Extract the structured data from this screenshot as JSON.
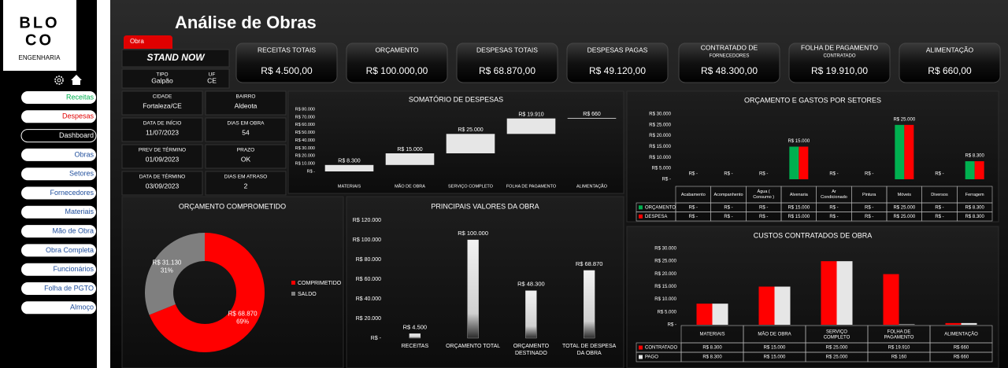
{
  "sidebar": {
    "logo_lines": [
      "BLO",
      "CO"
    ],
    "logo_subtitle": "ENGENHARIA",
    "nav": [
      "Receitas",
      "Despesas",
      "Dashboard",
      "Obras",
      "Setores",
      "Fornecedores",
      "Materiais",
      "Mão de Obra",
      "Obra Completa",
      "Funcionários",
      "Folha de PGTO",
      "Almoço"
    ]
  },
  "header": {
    "title": "Análise de Obras"
  },
  "project": {
    "tag": "Obra",
    "name": "STAND NOW",
    "fields": [
      {
        "label": "TIPO",
        "value": "Galpão"
      },
      {
        "label": "UF",
        "value": "CE"
      },
      {
        "label": "CIDADE",
        "value": "Fortaleza/CE"
      },
      {
        "label": "BAIRRO",
        "value": "Aldeota"
      },
      {
        "label": "DATA DE INÍCIO",
        "value": "11/07/2023"
      },
      {
        "label": "DIAS EM OBRA",
        "value": "54"
      },
      {
        "label": "PREV DE TÉRMINO",
        "value": "01/09/2023"
      },
      {
        "label": "PRAZO",
        "value": "OK"
      },
      {
        "label": "DATA DE TÉRMINO",
        "value": "03/09/2023"
      },
      {
        "label": "DIAS EM ATRASO",
        "value": "2"
      }
    ]
  },
  "kpis": [
    {
      "label": "RECEITAS TOTAIS",
      "value": "R$ 4.500,00"
    },
    {
      "label": "ORÇAMENTO",
      "value": "R$ 100.000,00"
    },
    {
      "label": "DESPESAS TOTAIS",
      "value": "R$ 68.870,00"
    },
    {
      "label": "DESPESAS PAGAS",
      "value": "R$ 49.120,00"
    },
    {
      "label": "CONTRATADO DE",
      "sublabel": "FORNECEDORES",
      "value": "R$ 48.300,00"
    },
    {
      "label": "FOLHA DE PAGAMENTO",
      "sublabel": "CONTRATADO",
      "value": "R$ 19.910,00"
    },
    {
      "label": "ALIMENTAÇÃO",
      "value": "R$ 660,00"
    }
  ],
  "chart_data": [
    {
      "type": "waterfall",
      "title": "SOMATÓRIO DE DESPESAS",
      "categories": [
        "MATERIAIS",
        "MÃO DE OBRA",
        "SERVIÇO COMPLETO",
        "FOLHA DE PAGAMENTO",
        "ALIMENTAÇÃO"
      ],
      "values": [
        8300,
        15000,
        25000,
        19910,
        660
      ],
      "value_labels": [
        "R$ 8.300",
        "R$ 15.000",
        "R$ 25.000",
        "R$ 19.910",
        "R$ 660"
      ],
      "color": "#e6e6e6",
      "grid": false,
      "ylim": [
        0,
        80000
      ],
      "yticks": [
        {
          "value": 0,
          "label": "R$ -"
        },
        {
          "value": 10000,
          "label": "R$ 10.000"
        },
        {
          "value": 20000,
          "label": "R$ 20.000"
        },
        {
          "value": 30000,
          "label": "R$ 30.000"
        },
        {
          "value": 40000,
          "label": "R$ 40.000"
        },
        {
          "value": 50000,
          "label": "R$ 50.000"
        },
        {
          "value": 60000,
          "label": "R$ 60.000"
        },
        {
          "value": 70000,
          "label": "R$ 70.000"
        },
        {
          "value": 80000,
          "label": "R$ 80.000"
        }
      ]
    },
    {
      "type": "donut",
      "title": "ORÇAMENTO COMPROMETIDO",
      "categories": [
        "COMPRIMETIDO",
        "SALDO"
      ],
      "values": [
        68870,
        31130
      ],
      "value_labels": [
        "R$ 68.870",
        "R$ 31.130"
      ],
      "percent_labels": [
        "69%",
        "31%"
      ],
      "colors": [
        "#ff0000",
        "#7f7f7f"
      ],
      "legend": "right"
    },
    {
      "type": "bar",
      "title": "PRINCIPAIS VALORES DA OBRA",
      "categories": [
        "RECEITAS",
        "ORÇAMENTO TOTAL",
        "ORÇAMENTO DESTINADO",
        "TOTAL DE DESPESA DA OBRA"
      ],
      "values": [
        4500,
        100000,
        48300,
        68870
      ],
      "value_labels": [
        "R$ 4.500",
        "R$ 100.000",
        "R$ 48.300",
        "R$ 68.870"
      ],
      "color": "#e6e6e6",
      "grid": false,
      "ylim": [
        0,
        120000
      ],
      "yticks": [
        {
          "value": 0,
          "label": "R$ -"
        },
        {
          "value": 20000,
          "label": "R$ 20.000"
        },
        {
          "value": 40000,
          "label": "R$ 40.000"
        },
        {
          "value": 60000,
          "label": "R$ 60.000"
        },
        {
          "value": 80000,
          "label": "R$ 80.000"
        },
        {
          "value": 100000,
          "label": "R$ 100.000"
        },
        {
          "value": 120000,
          "label": "R$ 120.000"
        }
      ]
    },
    {
      "type": "grouped_bar_table",
      "title": "ORÇAMENTO E GASTOS POR SETORES",
      "categories": [
        "Acabamento",
        "Acompanhento",
        "Água ( Consumo )",
        "Alvenaria",
        "Ar Condicionado",
        "Pintura",
        "Móveis",
        "Diversos",
        "Ferragem"
      ],
      "series": [
        {
          "name": "ORÇAMENTO",
          "color": "#00b050",
          "values": [
            0,
            0,
            0,
            15000,
            0,
            0,
            25000,
            0,
            8300
          ],
          "value_labels": [
            "R$ -",
            "R$ -",
            "R$ -",
            "R$ 15.000",
            "R$ -",
            "R$ -",
            "R$ 25.000",
            "R$ -",
            "R$ 8.300"
          ]
        },
        {
          "name": "DESPESA",
          "color": "#ff0000",
          "values": [
            0,
            0,
            0,
            15000,
            0,
            0,
            25000,
            0,
            8300
          ],
          "value_labels": [
            "R$ -",
            "R$ -",
            "R$ -",
            "R$ 15.000",
            "R$ -",
            "R$ -",
            "R$ 25.000",
            "R$ -",
            "R$ 8.300"
          ]
        }
      ],
      "data_labels": true,
      "grid": false,
      "ylim": [
        0,
        30000
      ],
      "yticks": [
        {
          "value": 0,
          "label": "R$ -"
        },
        {
          "value": 5000,
          "label": "R$ 5.000"
        },
        {
          "value": 10000,
          "label": "R$ 10.000"
        },
        {
          "value": 15000,
          "label": "R$ 15.000"
        },
        {
          "value": 20000,
          "label": "R$ 20.000"
        },
        {
          "value": 25000,
          "label": "R$ 25.000"
        },
        {
          "value": 30000,
          "label": "R$ 30.000"
        }
      ]
    },
    {
      "type": "grouped_bar_table",
      "title": "CUSTOS CONTRATADOS DE OBRA",
      "categories": [
        "MATERIAIS",
        "MÃO DE OBRA",
        "SERVIÇO COMPLETO",
        "FOLHA DE PAGAMENTO",
        "ALIMENTAÇÃO"
      ],
      "series": [
        {
          "name": "CONTRATADO",
          "color": "#ff0000",
          "values": [
            8300,
            15000,
            25000,
            19910,
            660
          ],
          "value_labels": [
            "R$ 8.300",
            "R$ 15.000",
            "R$ 25.000",
            "R$ 19.910",
            "R$ 660"
          ]
        },
        {
          "name": "PAGO",
          "color": "#e6e6e6",
          "values": [
            8300,
            15000,
            25000,
            160,
            660
          ],
          "value_labels": [
            "R$ 8.300",
            "R$ 15.000",
            "R$ 25.000",
            "R$ 160",
            "R$ 660"
          ]
        }
      ],
      "data_labels": false,
      "grid": false,
      "ylim": [
        0,
        30000
      ],
      "yticks": [
        {
          "value": 0,
          "label": "R$ -"
        },
        {
          "value": 5000,
          "label": "R$ 5.000"
        },
        {
          "value": 10000,
          "label": "R$ 10.000"
        },
        {
          "value": 15000,
          "label": "R$ 15.000"
        },
        {
          "value": 20000,
          "label": "R$ 20.000"
        },
        {
          "value": 25000,
          "label": "R$ 25.000"
        },
        {
          "value": 30000,
          "label": "R$ 30.000"
        }
      ]
    }
  ]
}
